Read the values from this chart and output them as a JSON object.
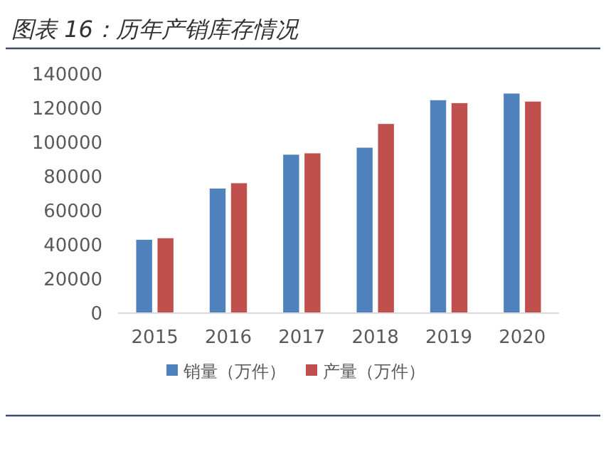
{
  "chart_data": {
    "type": "bar",
    "title": "图表 16：历年产销库存情况",
    "categories": [
      "2015",
      "2016",
      "2017",
      "2018",
      "2019",
      "2020"
    ],
    "series": [
      {
        "name": "销量（万件）",
        "color": "#4f81bd",
        "values": [
          43300,
          73300,
          93100,
          97200,
          125000,
          128900
        ]
      },
      {
        "name": "产量（万件）",
        "color": "#c0504d",
        "values": [
          44200,
          76400,
          93900,
          111100,
          123300,
          124200
        ]
      }
    ],
    "ylim": [
      0,
      140000
    ],
    "yticks": [
      0,
      20000,
      40000,
      60000,
      80000,
      100000,
      120000,
      140000
    ],
    "grid": false,
    "legend": "bottom"
  }
}
